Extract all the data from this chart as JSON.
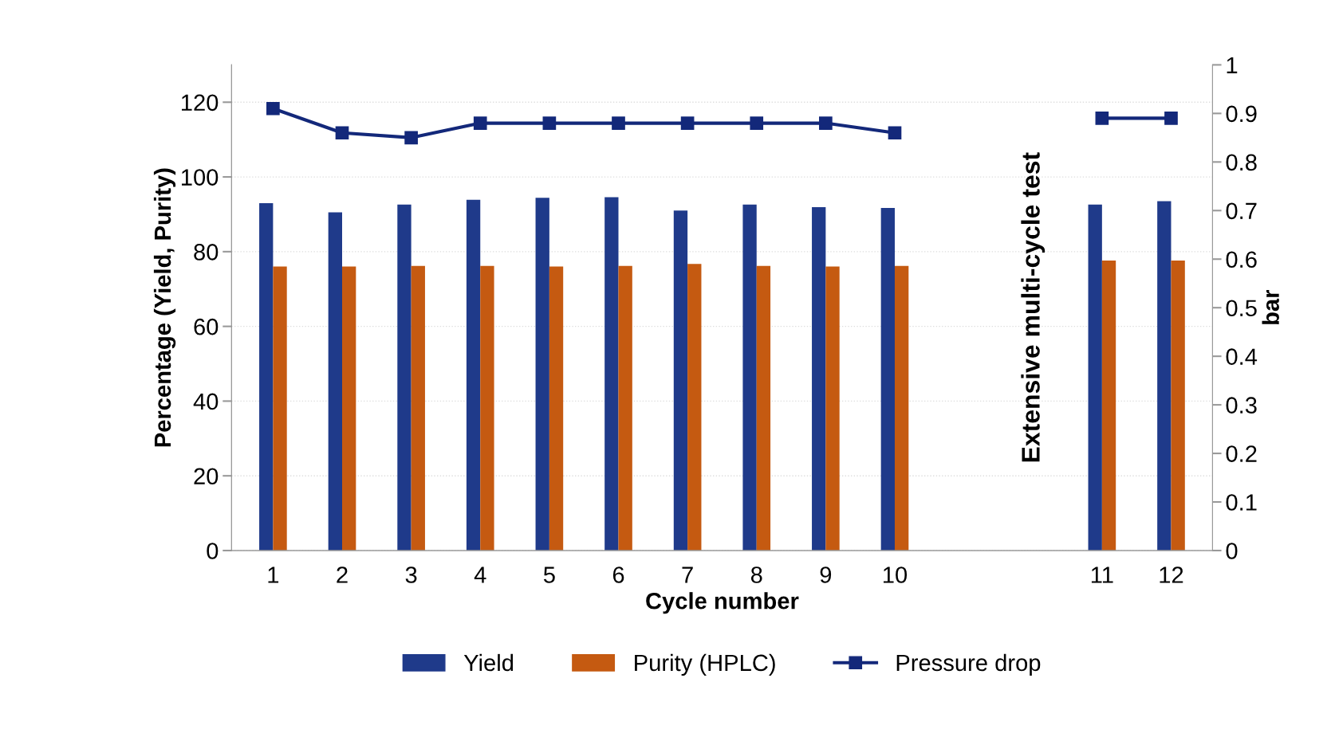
{
  "chart_data": {
    "type": "bar",
    "xlabel": "Cycle number",
    "ylabel": "Percentage (Yield, Purity)",
    "y2label": "bar",
    "categories": [
      "1",
      "2",
      "3",
      "4",
      "5",
      "6",
      "7",
      "8",
      "9",
      "10",
      null,
      null,
      "11",
      "12"
    ],
    "series": [
      {
        "name": "Yield",
        "color": "#1f3a8a",
        "values": [
          93.0,
          90.5,
          92.6,
          93.9,
          94.4,
          94.6,
          91.0,
          92.6,
          91.9,
          91.7,
          null,
          null,
          92.6,
          93.5
        ]
      },
      {
        "name": "Purity (HPLC)",
        "color": "#c55a11",
        "values": [
          76.0,
          76.0,
          76.2,
          76.2,
          76.0,
          76.2,
          76.7,
          76.2,
          76.0,
          76.2,
          null,
          null,
          77.6,
          77.6
        ]
      },
      {
        "name": "Pressure drop",
        "type": "line",
        "axis": "y2",
        "color": "#13287a",
        "marker": "square",
        "values": [
          0.91,
          0.86,
          0.85,
          0.88,
          0.88,
          0.88,
          0.88,
          0.88,
          0.88,
          0.86,
          null,
          null,
          0.89,
          0.89
        ]
      }
    ],
    "ylim": [
      0,
      130
    ],
    "yticks": [
      0,
      20,
      40,
      60,
      80,
      100,
      120
    ],
    "y2lim": [
      0,
      1
    ],
    "y2ticks": [
      0,
      {
        "value": 0.1,
        "label": "0.1"
      },
      {
        "value": 0.2,
        "label": "0.2"
      },
      {
        "value": 0.3,
        "label": "0.3"
      },
      {
        "value": 0.4,
        "label": "0.4"
      },
      {
        "value": 0.5,
        "label": "0.5"
      },
      {
        "value": 0.6,
        "label": "0.6"
      },
      {
        "value": 0.7,
        "label": "0.7"
      },
      {
        "value": 0.8,
        "label": "0.8"
      },
      {
        "value": 0.9,
        "label": "0.9"
      },
      1
    ],
    "annotations": [
      "Extensive multi-cycle test"
    ],
    "grid": "y",
    "legend": "bottom"
  }
}
